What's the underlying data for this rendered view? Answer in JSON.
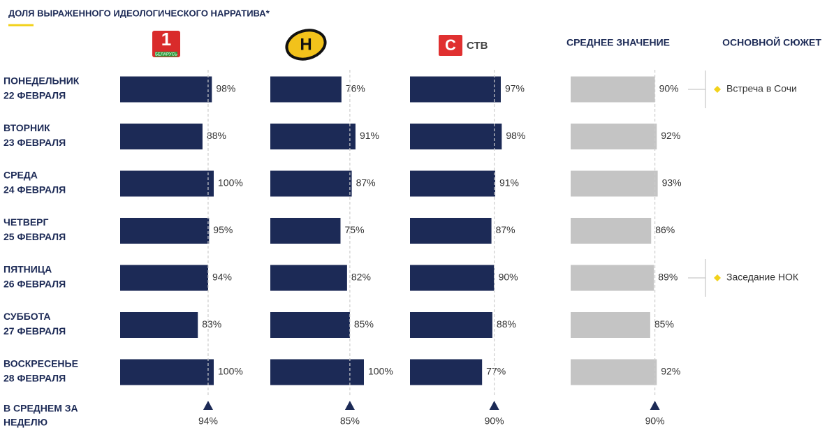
{
  "chart_data": {
    "type": "bar",
    "title": "ДОЛЯ ВЫРАЖЕННОГО ИДЕОЛОГИЧЕСКОГО НАРРАТИВА*",
    "categories": [
      [
        "ПОНЕДЕЛЬНИК",
        "22 ФЕВРАЛЯ"
      ],
      [
        "ВТОРНИК",
        "23 ФЕВРАЛЯ"
      ],
      [
        "СРЕДА",
        "24 ФЕВРАЛЯ"
      ],
      [
        "ЧЕТВЕРГ",
        "25 ФЕВРАЛЯ"
      ],
      [
        "ПЯТНИЦА",
        "26 ФЕВРАЛЯ"
      ],
      [
        "СУББОТА",
        "27 ФЕВРАЛЯ"
      ],
      [
        "ВОСКРЕСЕНЬЕ",
        "28 ФЕВРАЛЯ"
      ]
    ],
    "xlim": [
      0,
      100
    ],
    "series": [
      {
        "name": "1",
        "logo_caption": "БЕЛАРУСЬ",
        "color": "#1c2a56",
        "values": [
          98,
          88,
          100,
          95,
          94,
          83,
          100
        ],
        "value_labels": [
          "98%",
          "88%",
          "100%",
          "95%",
          "94%",
          "83%",
          "100%"
        ],
        "average": 94,
        "average_label": "94%"
      },
      {
        "name": "Н",
        "color": "#1c2a56",
        "values": [
          76,
          91,
          87,
          75,
          82,
          85,
          100
        ],
        "value_labels": [
          "76%",
          "91%",
          "87%",
          "75%",
          "82%",
          "85%",
          "100%"
        ],
        "average": 85,
        "average_label": "85%"
      },
      {
        "name": "СТВ",
        "color": "#1c2a56",
        "values": [
          97,
          98,
          91,
          87,
          90,
          88,
          77
        ],
        "value_labels": [
          "97%",
          "98%",
          "91%",
          "87%",
          "90%",
          "88%",
          "77%"
        ],
        "average": 90,
        "average_label": "90%"
      },
      {
        "name": "СРЕДНЕЕ ЗНАЧЕНИЕ",
        "color": "#c4c4c4",
        "values": [
          90,
          92,
          93,
          86,
          89,
          85,
          92
        ],
        "value_labels": [
          "90%",
          "92%",
          "93%",
          "86%",
          "89%",
          "85%",
          "92%"
        ],
        "average": 90,
        "average_label": "90%"
      }
    ],
    "summary_label": [
      "В СРЕДНЕМ ЗА",
      "НЕДЕЛЮ"
    ],
    "stories_title": "ОСНОВНОЙ СЮЖЕТ",
    "stories": [
      "Встреча в Сочи",
      null,
      null,
      null,
      "Заседание НОК",
      null,
      null
    ]
  }
}
